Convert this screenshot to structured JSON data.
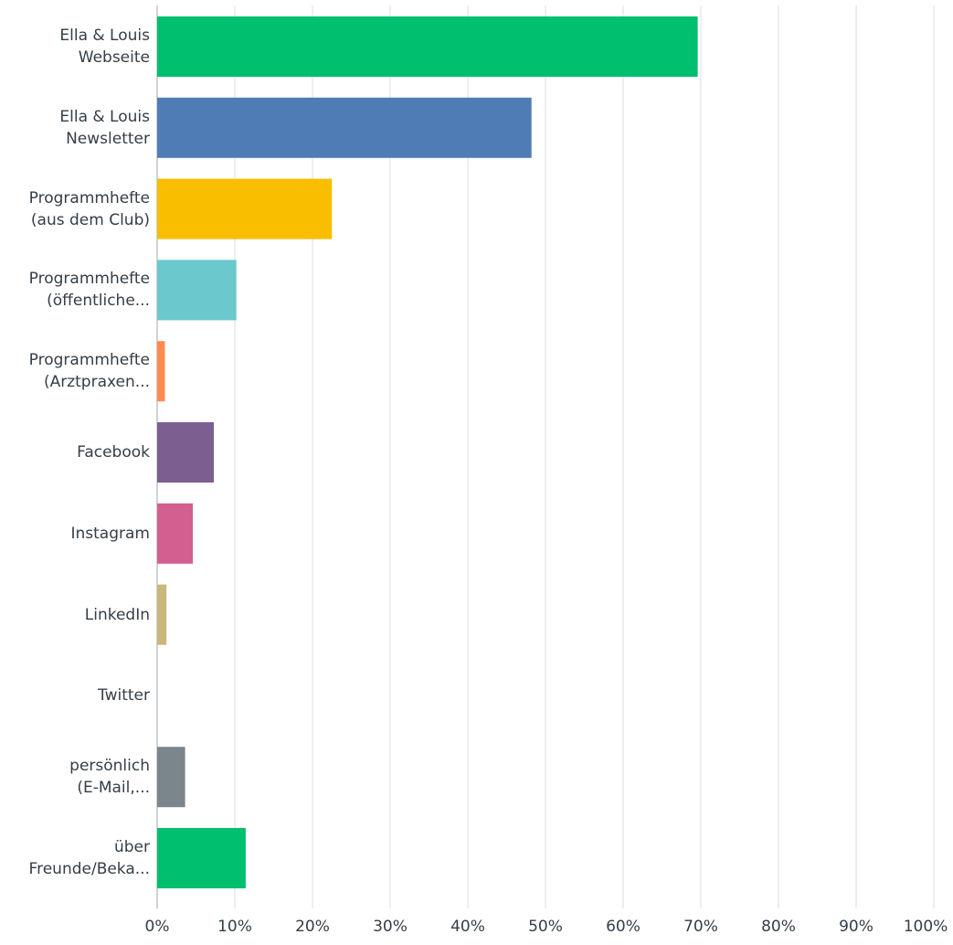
{
  "chart_data": {
    "type": "bar",
    "orientation": "horizontal",
    "categories": [
      [
        "Ella & Louis",
        "Webseite"
      ],
      [
        "Ella & Louis",
        "Newsletter"
      ],
      [
        "Programmhefte",
        "(aus dem Club)"
      ],
      [
        "Programmhefte",
        "(öffentliche..."
      ],
      [
        "Programmhefte",
        "(Arztpraxen..."
      ],
      [
        "Facebook"
      ],
      [
        "Instagram"
      ],
      [
        "LinkedIn"
      ],
      [
        "Twitter"
      ],
      [
        "persönlich",
        "(E-Mail,..."
      ],
      [
        "über",
        "Freunde/Beka..."
      ]
    ],
    "values": [
      69.6,
      48.2,
      22.5,
      10.2,
      1.0,
      7.3,
      4.6,
      1.2,
      0,
      3.6,
      11.4
    ],
    "colors": [
      "#00bf6f",
      "#507cb6",
      "#f9be00",
      "#6bc8cd",
      "#ff8b4f",
      "#7d5e90",
      "#d25f90",
      "#c9b87a",
      "#4a9ed9",
      "#7b868c",
      "#00bf6f"
    ],
    "xlim": [
      0,
      100
    ],
    "ticks": [
      "0%",
      "10%",
      "20%",
      "30%",
      "40%",
      "50%",
      "60%",
      "70%",
      "80%",
      "90%",
      "100%"
    ],
    "grid": true,
    "gridColor": "#e8e9ea",
    "axisColor": "#cfd3d6"
  }
}
